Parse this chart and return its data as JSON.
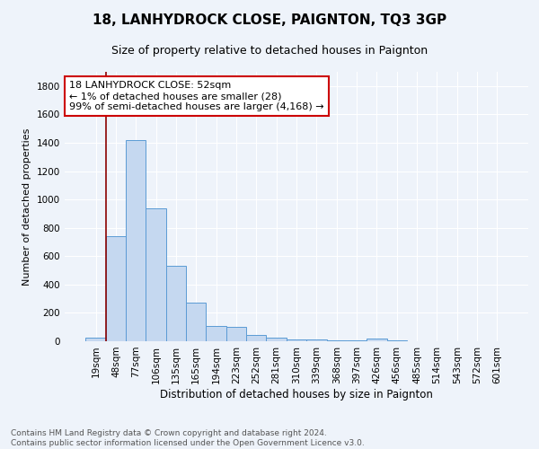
{
  "title": "18, LANHYDROCK CLOSE, PAIGNTON, TQ3 3GP",
  "subtitle": "Size of property relative to detached houses in Paignton",
  "xlabel": "Distribution of detached houses by size in Paignton",
  "ylabel": "Number of detached properties",
  "footnote1": "Contains HM Land Registry data © Crown copyright and database right 2024.",
  "footnote2": "Contains public sector information licensed under the Open Government Licence v3.0.",
  "bins": [
    "19sqm",
    "48sqm",
    "77sqm",
    "106sqm",
    "135sqm",
    "165sqm",
    "194sqm",
    "223sqm",
    "252sqm",
    "281sqm",
    "310sqm",
    "339sqm",
    "368sqm",
    "397sqm",
    "426sqm",
    "456sqm",
    "485sqm",
    "514sqm",
    "543sqm",
    "572sqm",
    "601sqm"
  ],
  "values": [
    28,
    740,
    1420,
    935,
    530,
    270,
    110,
    100,
    45,
    25,
    15,
    10,
    8,
    6,
    20,
    5,
    3,
    0,
    0,
    0,
    0
  ],
  "bar_color": "#c5d8f0",
  "bar_edge_color": "#5b9bd5",
  "vline_color": "#8b0000",
  "annotation_text": "18 LANHYDROCK CLOSE: 52sqm\n← 1% of detached houses are smaller (28)\n99% of semi-detached houses are larger (4,168) →",
  "annotation_box_color": "white",
  "annotation_box_edge": "#cc0000",
  "bg_color": "#eef3fa",
  "ylim": [
    0,
    1900
  ],
  "yticks": [
    0,
    200,
    400,
    600,
    800,
    1000,
    1200,
    1400,
    1600,
    1800
  ],
  "title_fontsize": 11,
  "subtitle_fontsize": 9,
  "annotation_fontsize": 8,
  "ylabel_fontsize": 8,
  "xlabel_fontsize": 8.5,
  "tick_fontsize": 7.5,
  "footnote_fontsize": 6.5
}
